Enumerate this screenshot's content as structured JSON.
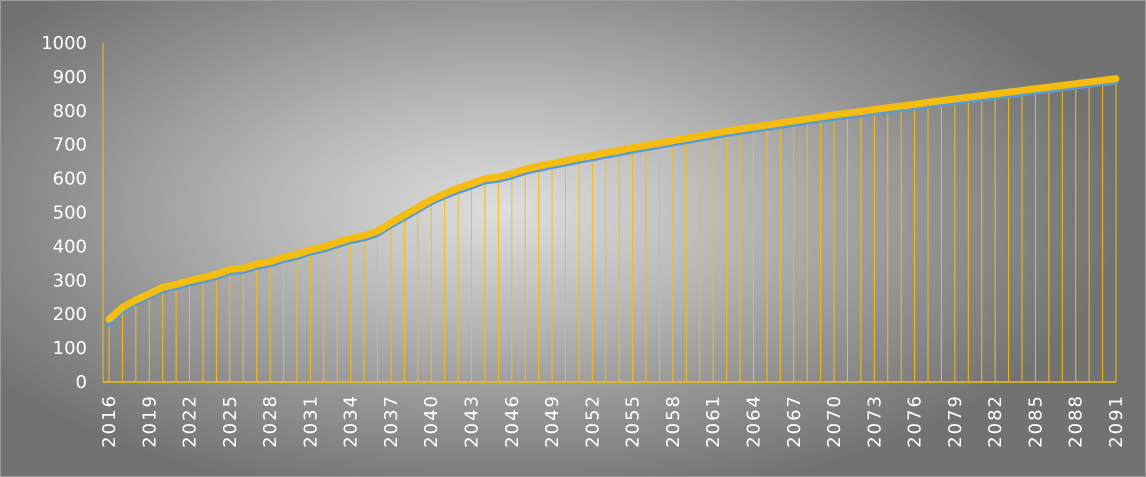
{
  "chart_data": {
    "type": "line",
    "title": "",
    "xlabel": "",
    "ylabel": "",
    "x_range": [
      2016,
      2091
    ],
    "x_tick_labels": [
      "2016",
      "2019",
      "2022",
      "2025",
      "2028",
      "2031",
      "2034",
      "2037",
      "2040",
      "2043",
      "2046",
      "2049",
      "2052",
      "2055",
      "2058",
      "2061",
      "2064",
      "2067",
      "2070",
      "2073",
      "2076",
      "2079",
      "2082",
      "2085",
      "2088",
      "2091"
    ],
    "ylim": [
      0,
      1000
    ],
    "y_tick_labels": [
      "0",
      "100",
      "200",
      "300",
      "400",
      "500",
      "600",
      "700",
      "800",
      "900",
      "1000"
    ],
    "grid": false,
    "drop_lines": true,
    "legend": "none",
    "colors": {
      "primary_line": "#f5bd10",
      "secondary_line": "#5b9bd5",
      "drop_line": "#f5bd10",
      "axis": "#f5bd10",
      "text": "#ffffff"
    },
    "series": [
      {
        "values": [
          185,
          220,
          242,
          260,
          279,
          288,
          299,
          308,
          318,
          332,
          336,
          348,
          355,
          368,
          377,
          390,
          399,
          412,
          424,
          432,
          445,
          470,
          492,
          515,
          538,
          556,
          572,
          585,
          600,
          605,
          615,
          628,
          637,
          645,
          653,
          661,
          668,
          676,
          683,
          691,
          698,
          705,
          712,
          719,
          726,
          733,
          740,
          746,
          752,
          758,
          764,
          770,
          776,
          782,
          788,
          793,
          798,
          804,
          809,
          814,
          819,
          825,
          830,
          835,
          840,
          845,
          850,
          855,
          860,
          865,
          870,
          875,
          880,
          885,
          890,
          895
        ]
      },
      {
        "values": [
          170,
          210,
          232,
          250,
          269,
          278,
          289,
          298,
          308,
          322,
          326,
          338,
          345,
          358,
          367,
          380,
          389,
          402,
          414,
          422,
          435,
          460,
          482,
          505,
          528,
          546,
          562,
          575,
          590,
          595,
          605,
          618,
          627,
          635,
          643,
          651,
          658,
          666,
          673,
          681,
          688,
          695,
          702,
          709,
          716,
          723,
          730,
          736,
          742,
          748,
          754,
          760,
          766,
          772,
          778,
          783,
          788,
          794,
          799,
          804,
          809,
          815,
          820,
          825,
          830,
          835,
          840,
          845,
          850,
          855,
          860,
          865,
          870,
          875,
          880,
          885
        ]
      }
    ]
  }
}
